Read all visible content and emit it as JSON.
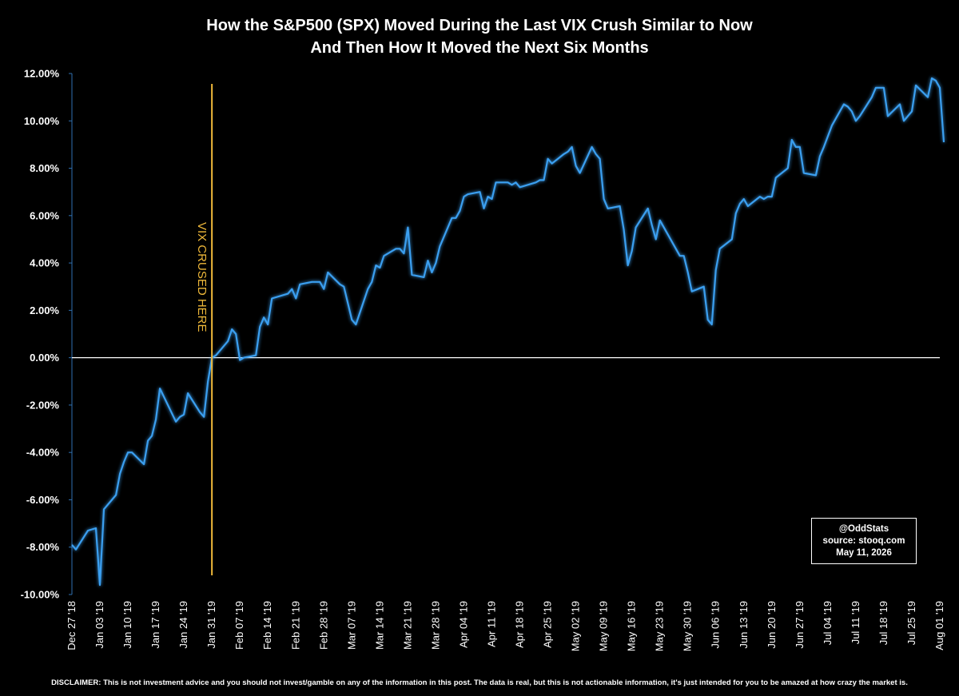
{
  "chart_data": {
    "type": "line",
    "title": [
      "How the S&P500 (SPX) Moved During the Last VIX Crush Similar to Now",
      "And Then How It Moved the Next Six Months"
    ],
    "xlabel": "",
    "ylabel": "",
    "ylim": [
      -10,
      12
    ],
    "y_ticks": [
      "12.00%",
      "10.00%",
      "8.00%",
      "6.00%",
      "4.00%",
      "2.00%",
      "0.00%",
      "-2.00%",
      "-4.00%",
      "-6.00%",
      "-8.00%",
      "-10.00%"
    ],
    "x_range": [
      "2018-12-27",
      "2019-08-01"
    ],
    "x_ticks": [
      {
        "date": "2018-12-27",
        "label": "Dec 27 '18"
      },
      {
        "date": "2019-01-03",
        "label": "Jan 03 '19"
      },
      {
        "date": "2019-01-10",
        "label": "Jan 10 '19"
      },
      {
        "date": "2019-01-17",
        "label": "Jan 17 '19"
      },
      {
        "date": "2019-01-24",
        "label": "Jan 24 '19"
      },
      {
        "date": "2019-01-31",
        "label": "Jan 31 '19"
      },
      {
        "date": "2019-02-07",
        "label": "Feb 07 '19"
      },
      {
        "date": "2019-02-14",
        "label": "Feb 14 '19"
      },
      {
        "date": "2019-02-21",
        "label": "Feb 21 '19"
      },
      {
        "date": "2019-02-28",
        "label": "Feb 28 '19"
      },
      {
        "date": "2019-03-07",
        "label": "Mar 07 '19"
      },
      {
        "date": "2019-03-14",
        "label": "Mar 14 '19"
      },
      {
        "date": "2019-03-21",
        "label": "Mar 21 '19"
      },
      {
        "date": "2019-03-28",
        "label": "Mar 28 '19"
      },
      {
        "date": "2019-04-04",
        "label": "Apr 04 '19"
      },
      {
        "date": "2019-04-11",
        "label": "Apr 11 '19"
      },
      {
        "date": "2019-04-18",
        "label": "Apr 18 '19"
      },
      {
        "date": "2019-04-25",
        "label": "Apr 25 '19"
      },
      {
        "date": "2019-05-02",
        "label": "May 02 '19"
      },
      {
        "date": "2019-05-09",
        "label": "May 09 '19"
      },
      {
        "date": "2019-05-16",
        "label": "May 16 '19"
      },
      {
        "date": "2019-05-23",
        "label": "May 23 '19"
      },
      {
        "date": "2019-05-30",
        "label": "May 30 '19"
      },
      {
        "date": "2019-06-06",
        "label": "Jun 06 '19"
      },
      {
        "date": "2019-06-13",
        "label": "Jun 13 '19"
      },
      {
        "date": "2019-06-20",
        "label": "Jun 20 '19"
      },
      {
        "date": "2019-06-27",
        "label": "Jun 27 '19"
      },
      {
        "date": "2019-07-04",
        "label": "Jul 04 '19"
      },
      {
        "date": "2019-07-11",
        "label": "Jul 11 '19"
      },
      {
        "date": "2019-07-18",
        "label": "Jul 18 '19"
      },
      {
        "date": "2019-07-25",
        "label": "Jul 25 '19"
      },
      {
        "date": "2019-08-01",
        "label": "Aug 01 '19"
      }
    ],
    "grid": false,
    "series": [
      {
        "color": "#3a9ff0",
        "points": [
          [
            "2018-12-27",
            -7.9
          ],
          [
            "2018-12-28",
            -8.1
          ],
          [
            "2018-12-31",
            -7.3
          ],
          [
            "2019-01-02",
            -7.2
          ],
          [
            "2019-01-03",
            -9.6
          ],
          [
            "2019-01-04",
            -6.4
          ],
          [
            "2019-01-07",
            -5.8
          ],
          [
            "2019-01-08",
            -4.9
          ],
          [
            "2019-01-09",
            -4.4
          ],
          [
            "2019-01-10",
            -4.0
          ],
          [
            "2019-01-11",
            -4.0
          ],
          [
            "2019-01-14",
            -4.5
          ],
          [
            "2019-01-15",
            -3.5
          ],
          [
            "2019-01-16",
            -3.3
          ],
          [
            "2019-01-17",
            -2.6
          ],
          [
            "2019-01-18",
            -1.3
          ],
          [
            "2019-01-22",
            -2.7
          ],
          [
            "2019-01-23",
            -2.5
          ],
          [
            "2019-01-24",
            -2.4
          ],
          [
            "2019-01-25",
            -1.5
          ],
          [
            "2019-01-28",
            -2.3
          ],
          [
            "2019-01-29",
            -2.5
          ],
          [
            "2019-01-30",
            -1.0
          ],
          [
            "2019-01-31",
            0.0
          ],
          [
            "2019-02-01",
            0.1
          ],
          [
            "2019-02-04",
            0.7
          ],
          [
            "2019-02-05",
            1.2
          ],
          [
            "2019-02-06",
            1.0
          ],
          [
            "2019-02-07",
            -0.1
          ],
          [
            "2019-02-08",
            0.0
          ],
          [
            "2019-02-11",
            0.1
          ],
          [
            "2019-02-12",
            1.3
          ],
          [
            "2019-02-13",
            1.7
          ],
          [
            "2019-02-14",
            1.4
          ],
          [
            "2019-02-15",
            2.5
          ],
          [
            "2019-02-19",
            2.7
          ],
          [
            "2019-02-20",
            2.9
          ],
          [
            "2019-02-21",
            2.5
          ],
          [
            "2019-02-22",
            3.1
          ],
          [
            "2019-02-25",
            3.2
          ],
          [
            "2019-02-26",
            3.2
          ],
          [
            "2019-02-27",
            3.2
          ],
          [
            "2019-02-28",
            2.9
          ],
          [
            "2019-03-01",
            3.6
          ],
          [
            "2019-03-04",
            3.1
          ],
          [
            "2019-03-05",
            3.0
          ],
          [
            "2019-03-06",
            2.3
          ],
          [
            "2019-03-07",
            1.6
          ],
          [
            "2019-03-08",
            1.4
          ],
          [
            "2019-03-11",
            2.9
          ],
          [
            "2019-03-12",
            3.2
          ],
          [
            "2019-03-13",
            3.9
          ],
          [
            "2019-03-14",
            3.8
          ],
          [
            "2019-03-15",
            4.3
          ],
          [
            "2019-03-18",
            4.6
          ],
          [
            "2019-03-19",
            4.6
          ],
          [
            "2019-03-20",
            4.4
          ],
          [
            "2019-03-21",
            5.5
          ],
          [
            "2019-03-22",
            3.5
          ],
          [
            "2019-03-25",
            3.4
          ],
          [
            "2019-03-26",
            4.1
          ],
          [
            "2019-03-27",
            3.6
          ],
          [
            "2019-03-28",
            4.0
          ],
          [
            "2019-03-29",
            4.7
          ],
          [
            "2019-04-01",
            5.9
          ],
          [
            "2019-04-02",
            5.9
          ],
          [
            "2019-04-03",
            6.2
          ],
          [
            "2019-04-04",
            6.8
          ],
          [
            "2019-04-05",
            6.9
          ],
          [
            "2019-04-08",
            7.0
          ],
          [
            "2019-04-09",
            6.3
          ],
          [
            "2019-04-10",
            6.8
          ],
          [
            "2019-04-11",
            6.7
          ],
          [
            "2019-04-12",
            7.4
          ],
          [
            "2019-04-15",
            7.4
          ],
          [
            "2019-04-16",
            7.3
          ],
          [
            "2019-04-17",
            7.4
          ],
          [
            "2019-04-18",
            7.2
          ],
          [
            "2019-04-22",
            7.4
          ],
          [
            "2019-04-23",
            7.5
          ],
          [
            "2019-04-24",
            7.5
          ],
          [
            "2019-04-25",
            8.4
          ],
          [
            "2019-04-26",
            8.2
          ],
          [
            "2019-04-29",
            8.6
          ],
          [
            "2019-04-30",
            8.7
          ],
          [
            "2019-05-01",
            8.9
          ],
          [
            "2019-05-02",
            8.1
          ],
          [
            "2019-05-03",
            7.8
          ],
          [
            "2019-05-06",
            8.9
          ],
          [
            "2019-05-07",
            8.6
          ],
          [
            "2019-05-08",
            8.4
          ],
          [
            "2019-05-09",
            6.7
          ],
          [
            "2019-05-10",
            6.3
          ],
          [
            "2019-05-13",
            6.4
          ],
          [
            "2019-05-14",
            5.4
          ],
          [
            "2019-05-15",
            3.9
          ],
          [
            "2019-05-16",
            4.5
          ],
          [
            "2019-05-17",
            5.5
          ],
          [
            "2019-05-20",
            6.3
          ],
          [
            "2019-05-21",
            5.6
          ],
          [
            "2019-05-22",
            5.0
          ],
          [
            "2019-05-23",
            5.8
          ],
          [
            "2019-05-24",
            5.5
          ],
          [
            "2019-05-28",
            4.3
          ],
          [
            "2019-05-29",
            4.3
          ],
          [
            "2019-05-30",
            3.6
          ],
          [
            "2019-05-31",
            2.8
          ],
          [
            "2019-06-03",
            3.0
          ],
          [
            "2019-06-04",
            1.6
          ],
          [
            "2019-06-05",
            1.4
          ],
          [
            "2019-06-06",
            3.7
          ],
          [
            "2019-06-07",
            4.6
          ],
          [
            "2019-06-10",
            5.0
          ],
          [
            "2019-06-11",
            6.1
          ],
          [
            "2019-06-12",
            6.5
          ],
          [
            "2019-06-13",
            6.7
          ],
          [
            "2019-06-14",
            6.4
          ],
          [
            "2019-06-17",
            6.8
          ],
          [
            "2019-06-18",
            6.7
          ],
          [
            "2019-06-19",
            6.8
          ],
          [
            "2019-06-20",
            6.8
          ],
          [
            "2019-06-21",
            7.6
          ],
          [
            "2019-06-24",
            8.0
          ],
          [
            "2019-06-25",
            9.2
          ],
          [
            "2019-06-26",
            8.9
          ],
          [
            "2019-06-27",
            8.9
          ],
          [
            "2019-06-28",
            7.8
          ],
          [
            "2019-07-01",
            7.7
          ],
          [
            "2019-07-02",
            8.5
          ],
          [
            "2019-07-03",
            8.9
          ],
          [
            "2019-07-05",
            9.8
          ],
          [
            "2019-07-08",
            10.7
          ],
          [
            "2019-07-09",
            10.6
          ],
          [
            "2019-07-10",
            10.4
          ],
          [
            "2019-07-11",
            10.0
          ],
          [
            "2019-07-12",
            10.2
          ],
          [
            "2019-07-15",
            11.0
          ],
          [
            "2019-07-16",
            11.4
          ],
          [
            "2019-07-17",
            11.4
          ],
          [
            "2019-07-18",
            11.4
          ],
          [
            "2019-07-19",
            10.2
          ],
          [
            "2019-07-22",
            10.7
          ],
          [
            "2019-07-23",
            10.0
          ],
          [
            "2019-07-24",
            10.2
          ],
          [
            "2019-07-25",
            10.4
          ],
          [
            "2019-07-26",
            11.5
          ],
          [
            "2019-07-29",
            11.0
          ],
          [
            "2019-07-30",
            11.8
          ],
          [
            "2019-07-31",
            11.7
          ],
          [
            "2019-08-01",
            11.4
          ],
          [
            "2019-08-02",
            9.1
          ]
        ]
      }
    ],
    "zero_line_color": "#ffffff",
    "annotations": [
      {
        "text": "VIX CRUSED HERE",
        "x": "2019-01-31",
        "color": "#f0b93a"
      }
    ]
  },
  "source_box": {
    "handle": "@OddStats",
    "source": "source: stooq.com",
    "date": "May 11, 2026"
  },
  "disclaimer": "DISCLAIMER: This is not investment advice and you should not invest/gamble on any of the information in this post.   The data is real, but this is not actionable information, it's just intended for you to be amazed at how crazy the market is."
}
